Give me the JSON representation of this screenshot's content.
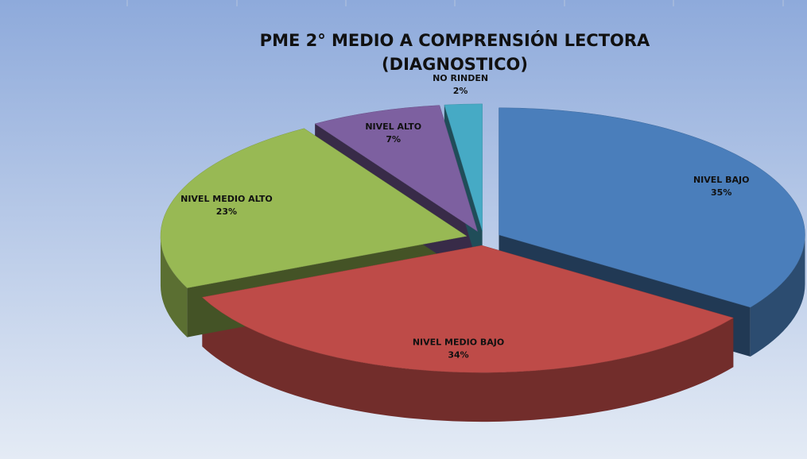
{
  "chart_data": {
    "type": "pie",
    "title": [
      "PME 2° MEDIO A COMPRENSIÓN LECTORA",
      "(DIAGNOSTICO)"
    ],
    "categories": [
      "NIVEL BAJO",
      "NIVEL MEDIO BAJO",
      "NIVEL MEDIO ALTO",
      "NIVEL ALTO",
      "NO RINDEN"
    ],
    "values": [
      35,
      34,
      23,
      7,
      2
    ],
    "value_labels": [
      "35%",
      "34%",
      "23%",
      "7%",
      "2%"
    ],
    "colors": [
      "#4a7ebb",
      "#be4b48",
      "#98b954",
      "#7d60a0",
      "#46aac5"
    ]
  }
}
